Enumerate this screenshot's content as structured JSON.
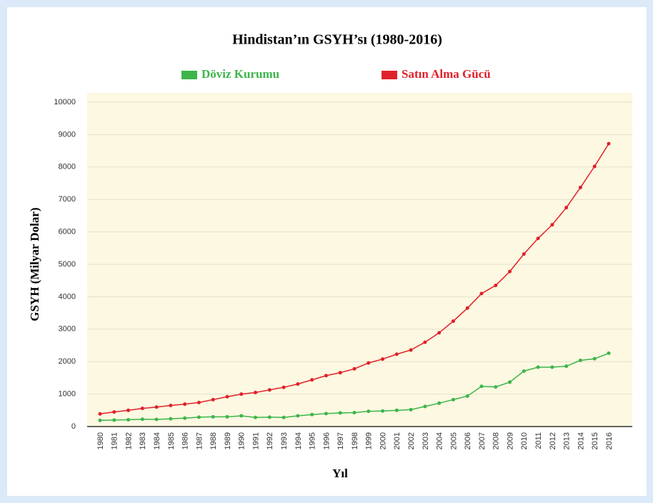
{
  "chart_data": {
    "type": "line",
    "title": "Hindistan’ın GSYH’sı (1980-2016)",
    "x_label": "Yıl",
    "y_label": "GSYH (Milyar Dolar)",
    "categories": [
      "1980",
      "1981",
      "1982",
      "1983",
      "1984",
      "1985",
      "1986",
      "1987",
      "1988",
      "1989",
      "1990",
      "1991",
      "1992",
      "1993",
      "1994",
      "1995",
      "1996",
      "1997",
      "1998",
      "1999",
      "2000",
      "2001",
      "2002",
      "2003",
      "2004",
      "2005",
      "2006",
      "2007",
      "2008",
      "2009",
      "2010",
      "2011",
      "2012",
      "2013",
      "2014",
      "2015",
      "2016"
    ],
    "series": [
      {
        "name": "Döviz Kurumu",
        "color": "#3cb54a",
        "values": [
          190,
          200,
          210,
          225,
          220,
          240,
          260,
          290,
          300,
          300,
          330,
          280,
          290,
          280,
          330,
          370,
          400,
          420,
          430,
          470,
          480,
          500,
          520,
          620,
          720,
          830,
          940,
          1240,
          1220,
          1370,
          1710,
          1830,
          1830,
          1860,
          2040,
          2090,
          2260
        ]
      },
      {
        "name": "Satın Alma Gücü",
        "color": "#e0202a",
        "values": [
          390,
          450,
          500,
          560,
          600,
          650,
          690,
          740,
          830,
          920,
          1000,
          1050,
          1130,
          1210,
          1310,
          1440,
          1570,
          1660,
          1780,
          1960,
          2080,
          2230,
          2360,
          2600,
          2890,
          3250,
          3650,
          4100,
          4350,
          4780,
          5320,
          5800,
          6220,
          6750,
          7370,
          8020,
          8720
        ]
      }
    ],
    "ylim": [
      0,
      10000
    ],
    "yticks": [
      0,
      1000,
      2000,
      3000,
      4000,
      5000,
      6000,
      7000,
      8000,
      9000,
      10000
    ],
    "grid": true
  }
}
